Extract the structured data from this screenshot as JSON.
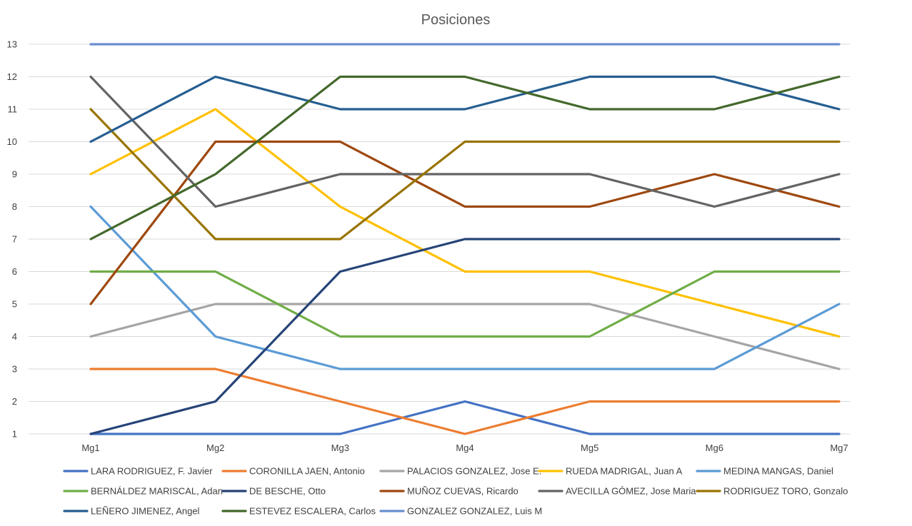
{
  "chart_data": {
    "type": "line",
    "title": "Posiciones",
    "xlabel": "",
    "ylabel": "",
    "categories": [
      "Mg1",
      "Mg2",
      "Mg3",
      "Mg4",
      "Mg5",
      "Mg6",
      "Mg7"
    ],
    "ylim": [
      1,
      13
    ],
    "yticks": [
      1,
      2,
      3,
      4,
      5,
      6,
      7,
      8,
      9,
      10,
      11,
      12,
      13
    ],
    "grid": true,
    "legend_position": "bottom",
    "series": [
      {
        "name": "LARA RODRIGUEZ, F. Javier",
        "color": "#4472C4",
        "values": [
          1,
          1,
          1,
          2,
          1,
          1,
          1
        ]
      },
      {
        "name": "CORONILLA JAEN, Antonio",
        "color": "#ED7D31",
        "values": [
          3,
          3,
          2,
          1,
          2,
          2,
          2
        ]
      },
      {
        "name": "PALACIOS GONZALEZ, Jose E.",
        "color": "#A5A5A5",
        "values": [
          4,
          5,
          5,
          5,
          5,
          4,
          3
        ]
      },
      {
        "name": "RUEDA MADRIGAL, Juan A",
        "color": "#FFC000",
        "values": [
          9,
          11,
          8,
          6,
          6,
          5,
          4
        ]
      },
      {
        "name": "MEDINA MANGAS, Daniel",
        "color": "#5B9BD5",
        "values": [
          8,
          4,
          3,
          3,
          3,
          3,
          5
        ]
      },
      {
        "name": "BERNÁLDEZ MARISCAL, Adan",
        "color": "#70AD47",
        "values": [
          6,
          6,
          4,
          4,
          4,
          6,
          6
        ]
      },
      {
        "name": "DE BESCHE, Otto",
        "color": "#264478",
        "values": [
          1,
          2,
          6,
          7,
          7,
          7,
          7
        ]
      },
      {
        "name": "MUÑOZ CUEVAS, Ricardo",
        "color": "#9E480E",
        "values": [
          5,
          10,
          10,
          8,
          8,
          9,
          8
        ]
      },
      {
        "name": "AVECILLA GÓMEZ, Jose Maria",
        "color": "#636363",
        "values": [
          12,
          8,
          9,
          9,
          9,
          8,
          9
        ]
      },
      {
        "name": "RODRIGUEZ TORO, Gonzalo",
        "color": "#997300",
        "values": [
          11,
          7,
          7,
          10,
          10,
          10,
          10
        ]
      },
      {
        "name": "LEÑERO JIMENEZ, Angel",
        "color": "#255E91",
        "values": [
          10,
          12,
          11,
          11,
          12,
          12,
          11
        ]
      },
      {
        "name": "ESTEVEZ ESCALERA, Carlos",
        "color": "#43682B",
        "values": [
          7,
          9,
          12,
          12,
          11,
          11,
          12
        ]
      },
      {
        "name": "GONZALEZ GONZALEZ, Luis M",
        "color": "#698ED0",
        "values": [
          13,
          13,
          13,
          13,
          13,
          13,
          13
        ]
      }
    ]
  }
}
